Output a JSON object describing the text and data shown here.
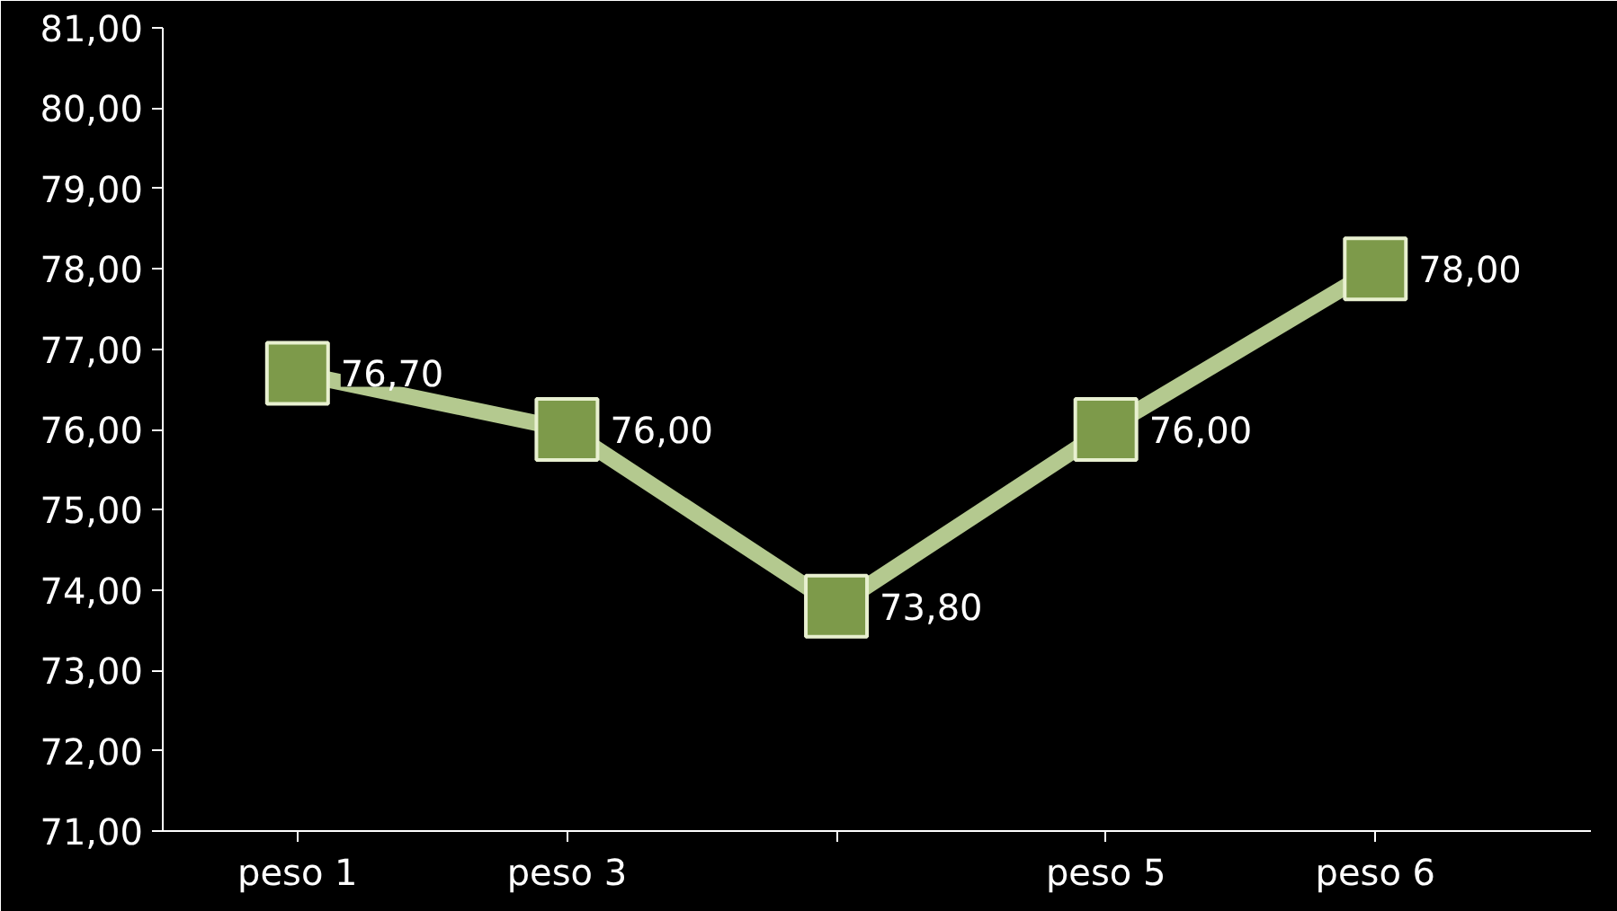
{
  "chart_data": {
    "type": "line",
    "categories": [
      "peso 1",
      "peso 3",
      null,
      "peso 5",
      "peso 6"
    ],
    "series": [
      {
        "color": "#b4c98f",
        "values": [
          76.7,
          76.0,
          73.8,
          76.0,
          78.0
        ],
        "value_labels": [
          "76,70",
          "76,00",
          "73,80",
          "76,00",
          "78,00"
        ]
      }
    ],
    "ylim": [
      71,
      81
    ],
    "yticks": [
      {
        "value": 71,
        "label": "71,00"
      },
      {
        "value": 72,
        "label": "72,00"
      },
      {
        "value": 73,
        "label": "73,00"
      },
      {
        "value": 74,
        "label": "74,00"
      },
      {
        "value": 75,
        "label": "75,00"
      },
      {
        "value": 76,
        "label": "76,00"
      },
      {
        "value": 77,
        "label": "77,00"
      },
      {
        "value": 78,
        "label": "78,00"
      },
      {
        "value": 79,
        "label": "79,00"
      },
      {
        "value": 80,
        "label": "80,00"
      },
      {
        "value": 81,
        "label": "81,00"
      }
    ],
    "grid": false,
    "marker": "square",
    "line_style": "solid"
  }
}
